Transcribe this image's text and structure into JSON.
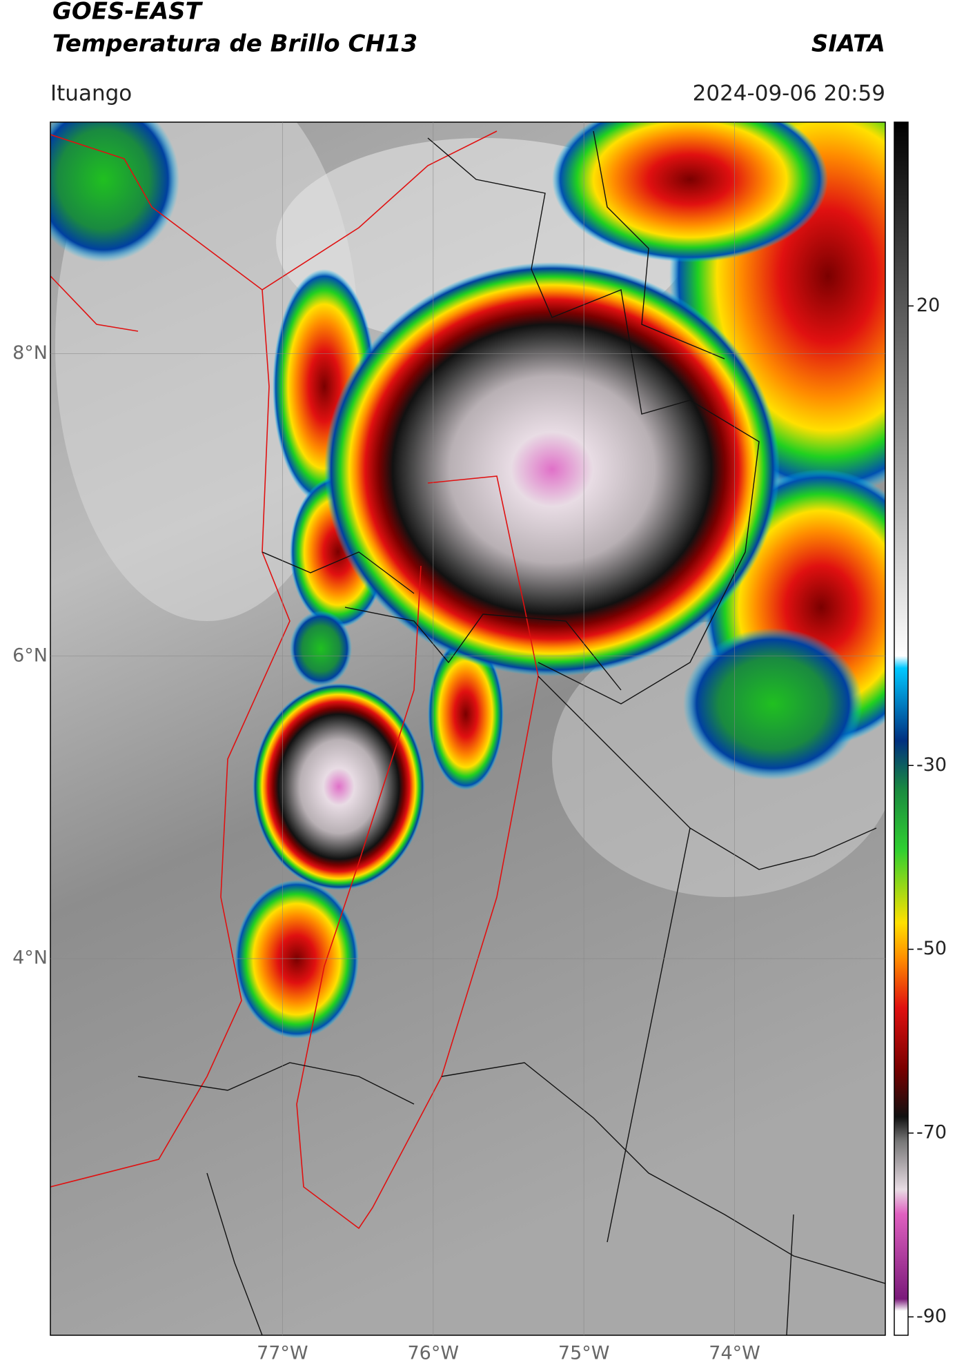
{
  "header": {
    "title": "GOES-EAST",
    "subtitle": "Temperatura de Brillo CH13",
    "agency": "SIATA",
    "location": "Ituango",
    "datetime": "2024-09-06 20:59"
  },
  "map": {
    "xlim": [
      -78.54,
      -73.0
    ],
    "ylim": [
      1.51,
      9.53
    ],
    "grid": true,
    "xticks": [
      {
        "value": -77,
        "label": "77°W"
      },
      {
        "value": -76,
        "label": "76°W"
      },
      {
        "value": -75,
        "label": "75°W"
      },
      {
        "value": -74,
        "label": "74°W"
      }
    ],
    "yticks": [
      {
        "value": 4,
        "label": "4°N"
      },
      {
        "value": 6,
        "label": "6°N"
      },
      {
        "value": 8,
        "label": "8°N"
      }
    ]
  },
  "colorbar": {
    "lim": [
      -92,
      40
    ],
    "ticks": [
      -90,
      -70,
      -50,
      -30,
      20
    ]
  }
}
